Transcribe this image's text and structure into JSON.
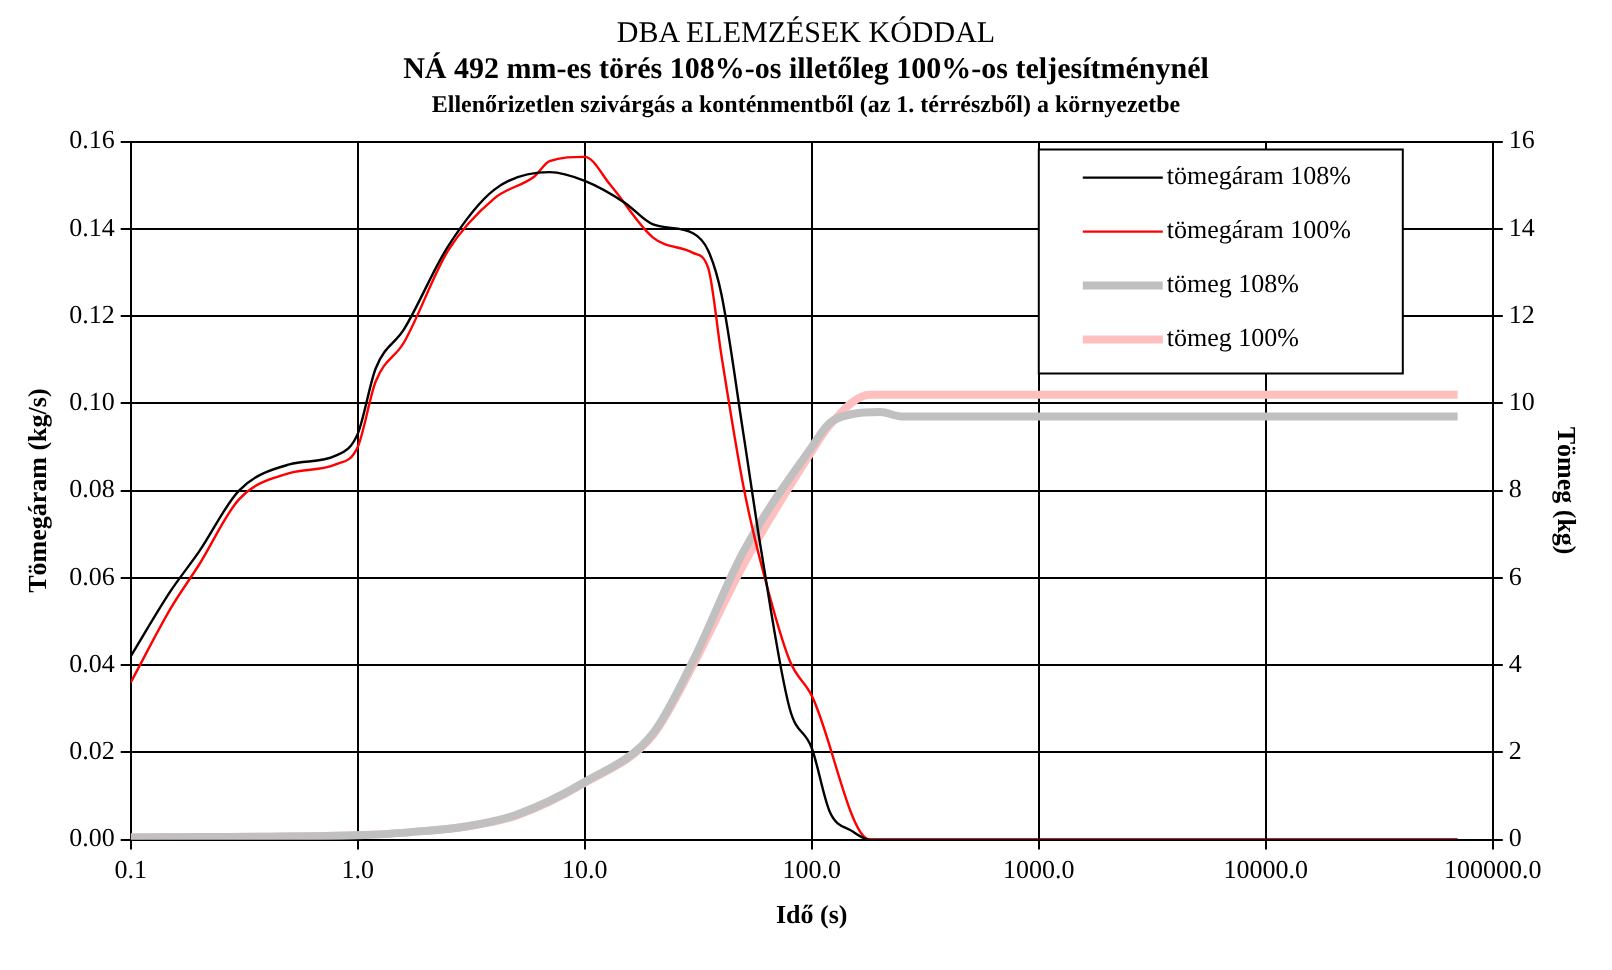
{
  "chart_data": {
    "type": "line",
    "title": "DBA ELEMZÉSEK KÓDDAL",
    "subtitle": "NÁ 492 mm-es törés 108%-os illetőleg 100%-os teljesítménynél",
    "annotations": [
      "Ellenőrizetlen szivárgás a konténmentből (az 1. térrészből) a környezetbe"
    ],
    "xlabel": "Idő (s)",
    "ylabel": "Tömegáram (kg/s)",
    "y2label": "Tömeg (kg)",
    "log": "x",
    "grid": true,
    "legend": "top right",
    "line_style": "solid",
    "marker": "none",
    "xlim": [
      0.1,
      100000
    ],
    "xticks": [
      {
        "value": 0.1,
        "label": "0.1"
      },
      {
        "value": 1,
        "label": "1.0"
      },
      {
        "value": 10,
        "label": "10.0"
      },
      {
        "value": 100,
        "label": "100.0"
      },
      {
        "value": 1000,
        "label": "1000.0"
      },
      {
        "value": 10000,
        "label": "10000.0"
      },
      {
        "value": 100000,
        "label": "100000.0"
      }
    ],
    "ylim": [
      0,
      0.16
    ],
    "yticks": [
      {
        "value": 0,
        "label": "0.00"
      },
      {
        "value": 0.02,
        "label": "0.02"
      },
      {
        "value": 0.04,
        "label": "0.04"
      },
      {
        "value": 0.06,
        "label": "0.06"
      },
      {
        "value": 0.08,
        "label": "0.08"
      },
      {
        "value": 0.1,
        "label": "0.10"
      },
      {
        "value": 0.12,
        "label": "0.12"
      },
      {
        "value": 0.14,
        "label": "0.14"
      },
      {
        "value": 0.16,
        "label": "0.16"
      }
    ],
    "y2lim": [
      0,
      16
    ],
    "y2ticks": [
      0,
      2,
      4,
      6,
      8,
      10,
      12,
      14,
      16
    ],
    "series": [
      {
        "name": "tömegáram 108%",
        "color": "#000000",
        "x": [
          0.1,
          0.15,
          0.2,
          0.3,
          0.5,
          0.8,
          1,
          1.2,
          1.6,
          2.5,
          4,
          7,
          10,
          15,
          20,
          30,
          35,
          40,
          50,
          60,
          80,
          100,
          120,
          150,
          180,
          70000
        ],
        "values": [
          0.042,
          0.057,
          0.066,
          0.08,
          0.086,
          0.088,
          0.093,
          0.108,
          0.117,
          0.136,
          0.149,
          0.153,
          0.151,
          0.146,
          0.141,
          0.139,
          0.135,
          0.125,
          0.093,
          0.066,
          0.03,
          0.021,
          0.0064,
          0.002,
          0,
          0
        ]
      },
      {
        "name": "tömegáram 100%",
        "color": "#ff0000",
        "x": [
          0.1,
          0.15,
          0.2,
          0.3,
          0.5,
          0.8,
          1,
          1.2,
          1.6,
          2.5,
          4,
          6,
          7,
          10,
          13,
          20,
          30,
          35,
          40,
          50,
          60,
          80,
          100,
          180,
          70000
        ],
        "values": [
          0.036,
          0.053,
          0.063,
          0.078,
          0.084,
          0.086,
          0.09,
          0.105,
          0.114,
          0.135,
          0.147,
          0.152,
          0.1555,
          0.1565,
          0.15,
          0.138,
          0.1345,
          0.131,
          0.111,
          0.081,
          0.063,
          0.041,
          0.033,
          0,
          0
        ]
      },
      {
        "name": "tömeg 108%",
        "color": "#c0c0c0",
        "axis": "y2",
        "x": [
          0.1,
          1,
          2,
          3,
          5,
          10,
          20,
          30,
          50,
          100,
          120,
          150,
          200,
          250,
          70000
        ],
        "values": [
          0.05,
          0.1,
          0.2,
          0.3,
          0.57,
          1.32,
          2.44,
          4.1,
          6.6,
          9.0,
          9.55,
          9.75,
          9.8,
          9.7,
          9.7
        ]
      },
      {
        "name": "tömeg 100%",
        "color": "#ffbfbf",
        "axis": "y2",
        "x": [
          0.1,
          1,
          2,
          3,
          5,
          10,
          20,
          30,
          50,
          100,
          120,
          180,
          70000
        ],
        "values": [
          0.05,
          0.1,
          0.2,
          0.3,
          0.55,
          1.3,
          2.4,
          4.0,
          6.3,
          8.9,
          9.5,
          10.2,
          10.2
        ]
      }
    ]
  }
}
